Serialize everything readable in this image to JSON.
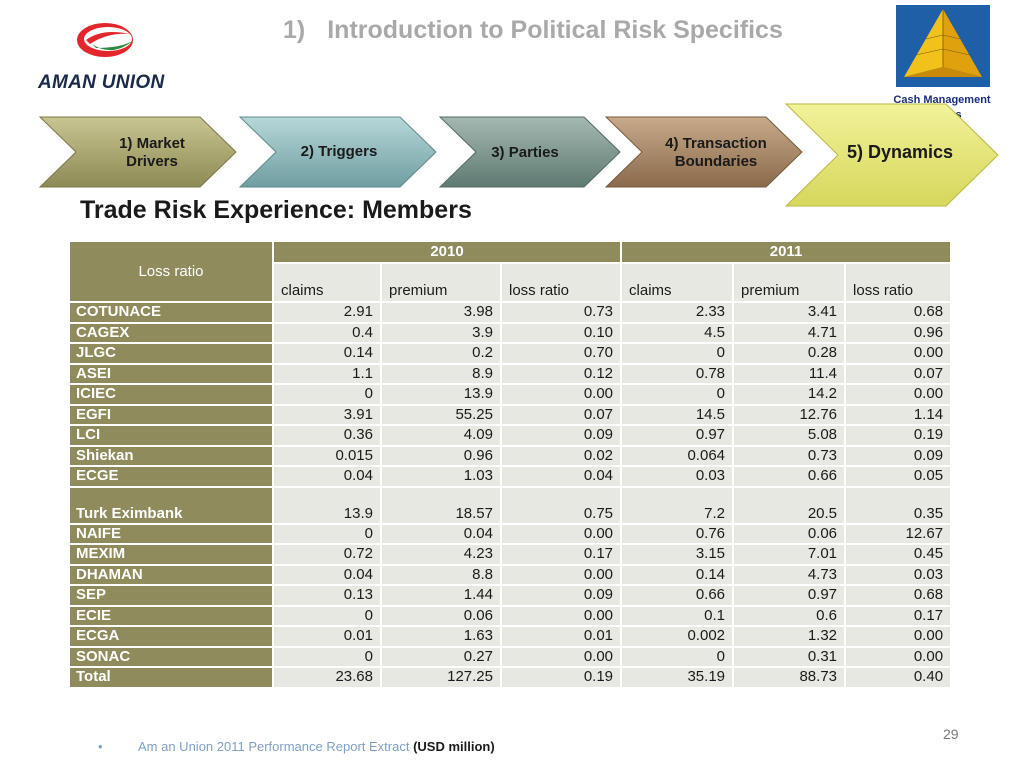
{
  "logo": {
    "text": "AMAN UNION"
  },
  "title": {
    "number": "1)",
    "text": "Introduction to Political Risk Specifics"
  },
  "brand": {
    "line1": "Cash Management",
    "line2": "Matters"
  },
  "steps": [
    {
      "line1": "1) Market",
      "line2": "Drivers"
    },
    {
      "line1": "2) Triggers"
    },
    {
      "line1": "3) Parties"
    },
    {
      "line1": "4) Transaction",
      "line2": "Boundaries"
    },
    {
      "line1": "5) Dynamics"
    }
  ],
  "section_title": "Trade Risk Experience: Members",
  "table": {
    "corner_label": "Loss ratio",
    "years": [
      "2010",
      "2011"
    ],
    "subheaders": [
      "claims",
      "premium",
      "loss ratio",
      "claims",
      "premium",
      "loss ratio"
    ],
    "rows": [
      {
        "name": "COTUNACE",
        "values": [
          "2.91",
          "3.98",
          "0.73",
          "2.33",
          "3.41",
          "0.68"
        ]
      },
      {
        "name": "CAGEX",
        "values": [
          "0.4",
          "3.9",
          "0.10",
          "4.5",
          "4.71",
          "0.96"
        ]
      },
      {
        "name": "JLGC",
        "values": [
          "0.14",
          "0.2",
          "0.70",
          "0",
          "0.28",
          "0.00"
        ]
      },
      {
        "name": "ASEI",
        "values": [
          "1.1",
          "8.9",
          "0.12",
          "0.78",
          "11.4",
          "0.07"
        ]
      },
      {
        "name": "ICIEC",
        "values": [
          "0",
          "13.9",
          "0.00",
          "0",
          "14.2",
          "0.00"
        ]
      },
      {
        "name": "EGFI",
        "values": [
          "3.91",
          "55.25",
          "0.07",
          "14.5",
          "12.76",
          "1.14"
        ]
      },
      {
        "name": "LCI",
        "values": [
          "0.36",
          "4.09",
          "0.09",
          "0.97",
          "5.08",
          "0.19"
        ]
      },
      {
        "name": "Shiekan",
        "values": [
          "0.015",
          "0.96",
          "0.02",
          "0.064",
          "0.73",
          "0.09"
        ]
      },
      {
        "name": "ECGE",
        "values": [
          "0.04",
          "1.03",
          "0.04",
          "0.03",
          "0.66",
          "0.05"
        ]
      },
      {
        "name": "Turk Eximbank",
        "values": [
          "13.9",
          "18.57",
          "0.75",
          "7.2",
          "20.5",
          "0.35"
        ]
      },
      {
        "name": "NAIFE",
        "values": [
          "0",
          "0.04",
          "0.00",
          "0.76",
          "0.06",
          "12.67"
        ]
      },
      {
        "name": "MEXIM",
        "values": [
          "0.72",
          "4.23",
          "0.17",
          "3.15",
          "7.01",
          "0.45"
        ]
      },
      {
        "name": "DHAMAN",
        "values": [
          "0.04",
          "8.8",
          "0.00",
          "0.14",
          "4.73",
          "0.03"
        ]
      },
      {
        "name": "SEP",
        "values": [
          "0.13",
          "1.44",
          "0.09",
          "0.66",
          "0.97",
          "0.68"
        ]
      },
      {
        "name": "ECIE",
        "values": [
          "0",
          "0.06",
          "0.00",
          "0.1",
          "0.6",
          "0.17"
        ]
      },
      {
        "name": "ECGA",
        "values": [
          "0.01",
          "1.63",
          "0.01",
          "0.002",
          "1.32",
          "0.00"
        ]
      },
      {
        "name": "SONAC",
        "values": [
          "0",
          "0.27",
          "0.00",
          "0",
          "0.31",
          "0.00"
        ]
      },
      {
        "name": "Total",
        "values": [
          "23.68",
          "127.25",
          "0.19",
          "35.19",
          "88.73",
          "0.40"
        ]
      }
    ]
  },
  "page_number": "29",
  "footnote": {
    "bullet": "•",
    "text": "Am an Union  2011 Performance Report Extract ",
    "emphasis": "(USD million)"
  }
}
